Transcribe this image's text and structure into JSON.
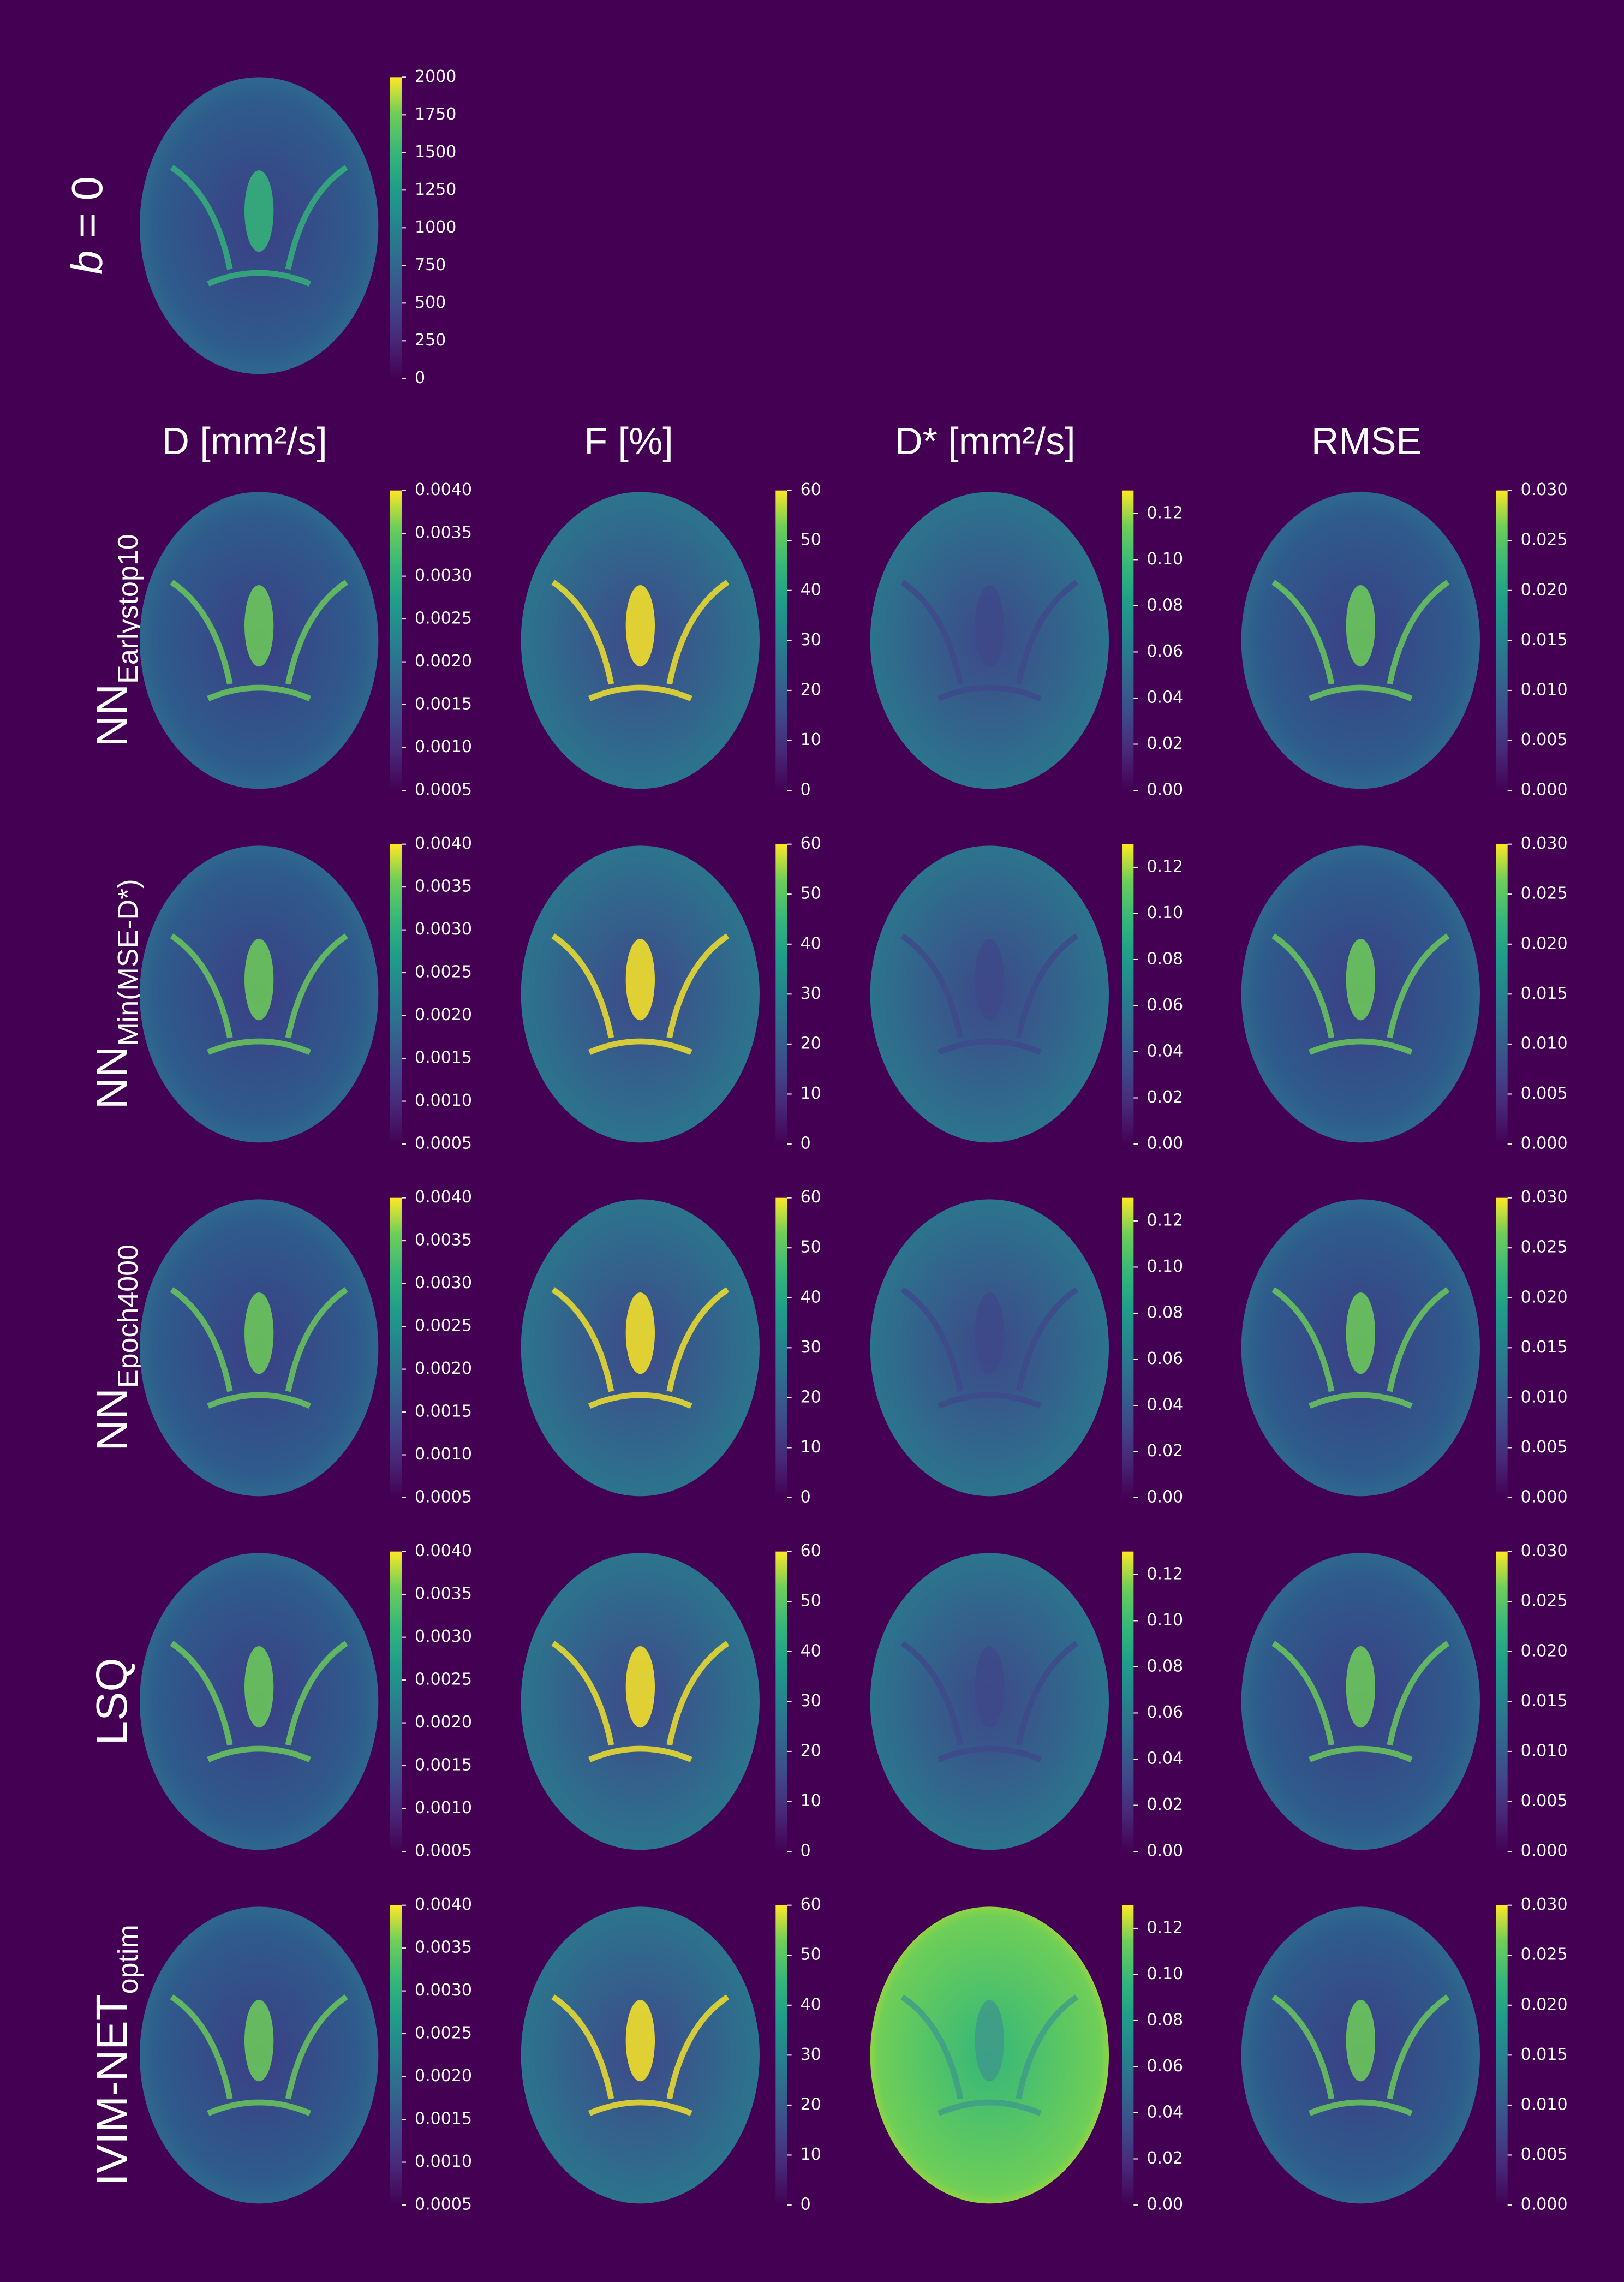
{
  "b0_label": {
    "italic": "b",
    "rest": " = 0"
  },
  "columns": [
    "D [mm²/s]",
    "F [%]",
    "D* [mm²/s]",
    "RMSE"
  ],
  "rows": [
    {
      "base": "NN",
      "sub": "Earlystop10"
    },
    {
      "base": "NN",
      "sub": "Min(MSE-D*)"
    },
    {
      "base": "NN",
      "sub": "Epoch4000"
    },
    {
      "base": "LSQ"
    },
    {
      "base": "IVIM-NET",
      "sub": "optim"
    }
  ],
  "colorbars": {
    "b0": {
      "lim": [
        0,
        2000
      ],
      "ticks": [
        0,
        250,
        500,
        750,
        1000,
        1250,
        1500,
        1750,
        2000
      ]
    },
    "D": {
      "lim": [
        0.0005,
        0.004
      ],
      "ticks": [
        {
          "value": 0.0005,
          "label": "0.0005"
        },
        {
          "value": 0.001,
          "label": "0.0010"
        },
        {
          "value": 0.0015,
          "label": "0.0015"
        },
        {
          "value": 0.002,
          "label": "0.0020"
        },
        {
          "value": 0.0025,
          "label": "0.0025"
        },
        {
          "value": 0.003,
          "label": "0.0030"
        },
        {
          "value": 0.0035,
          "label": "0.0035"
        },
        {
          "value": 0.004,
          "label": "0.0040"
        }
      ]
    },
    "F": {
      "lim": [
        0,
        60
      ],
      "ticks": [
        0,
        10,
        20,
        30,
        40,
        50,
        60
      ]
    },
    "Dstar": {
      "lim": [
        0,
        0.13
      ],
      "ticks": [
        {
          "value": 0,
          "label": "0.00"
        },
        {
          "value": 0.02,
          "label": "0.02"
        },
        {
          "value": 0.04,
          "label": "0.04"
        },
        {
          "value": 0.06,
          "label": "0.06"
        },
        {
          "value": 0.08,
          "label": "0.08"
        },
        {
          "value": 0.1,
          "label": "0.10"
        },
        {
          "value": 0.12,
          "label": "0.12"
        }
      ]
    },
    "RMSE": {
      "lim": [
        0,
        0.03
      ],
      "ticks": [
        {
          "value": 0,
          "label": "0.000"
        },
        {
          "value": 0.005,
          "label": "0.005"
        },
        {
          "value": 0.01,
          "label": "0.010"
        },
        {
          "value": 0.015,
          "label": "0.015"
        },
        {
          "value": 0.02,
          "label": "0.020"
        },
        {
          "value": 0.025,
          "label": "0.025"
        },
        {
          "value": 0.03,
          "label": "0.030"
        }
      ]
    }
  }
}
